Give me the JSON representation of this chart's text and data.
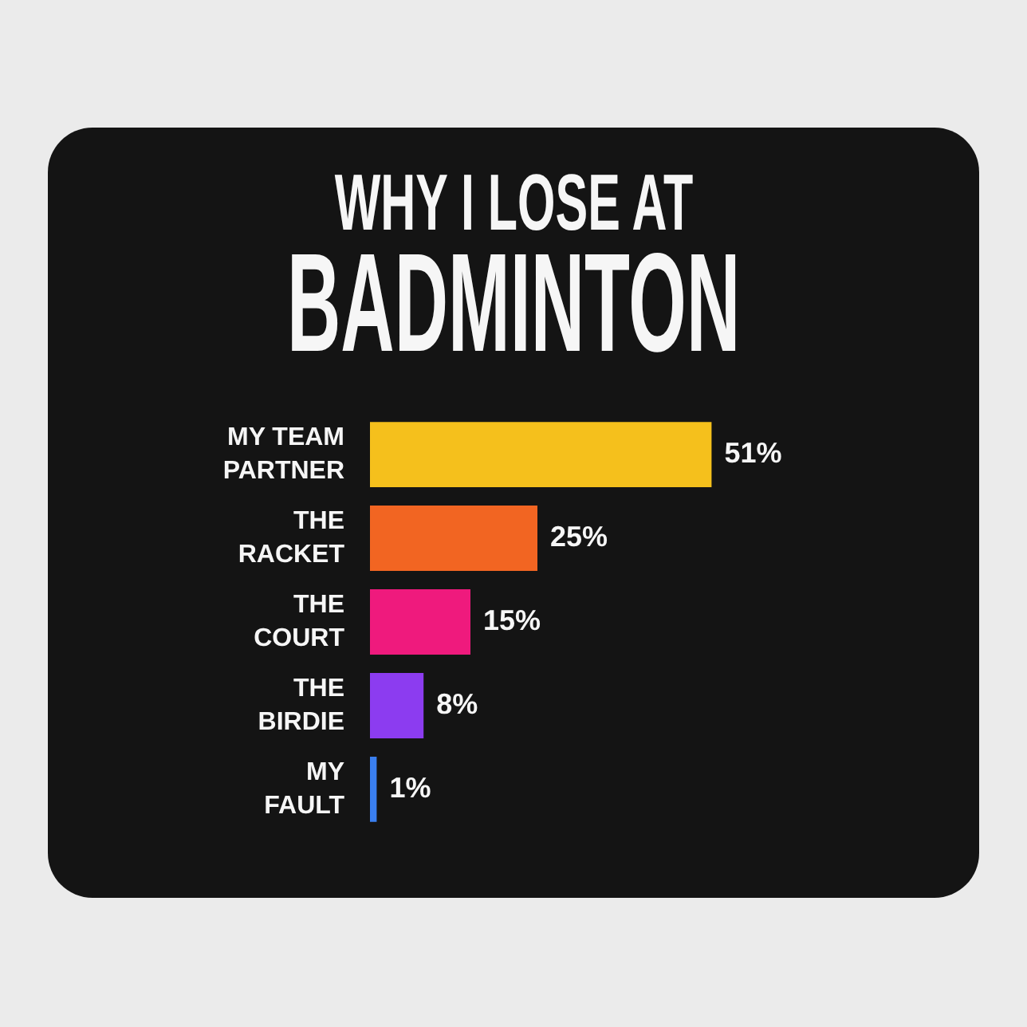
{
  "chart_data": {
    "type": "bar",
    "orientation": "horizontal",
    "title": "WHY I LOSE AT",
    "subtitle": "BADMINTON",
    "categories": [
      "MY TEAM PARTNER",
      "THE RACKET",
      "THE COURT",
      "THE BIRDIE",
      "MY FAULT"
    ],
    "values": [
      51,
      25,
      15,
      8,
      1
    ],
    "colors": [
      "#f5c01c",
      "#f26522",
      "#ef1a7d",
      "#8c3cf0",
      "#3a7ff0"
    ],
    "value_labels": [
      "51%",
      "25%",
      "15%",
      "8%",
      "1%"
    ],
    "tick_labels": "y",
    "legend": false,
    "grid": false
  }
}
